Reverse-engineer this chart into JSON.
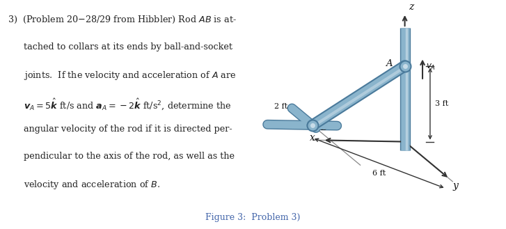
{
  "fig_width": 7.27,
  "fig_height": 3.29,
  "dpi": 100,
  "background_color": "#ffffff",
  "rod_color": "#8ab4cc",
  "rod_highlight": "#c8dce8",
  "rod_dark": "#4a7a9b",
  "axis_color": "#333333",
  "dim_color": "#333333",
  "floor_line_color": "#888888",
  "caption_color": "#4466aa",
  "text_color": "#222222",
  "figure_caption": "Figure 3:  Problem 3)",
  "problem_text": [
    [
      "3) ",
      "(Problem 20–28/29 from Hibbler) Rod ",
      "AB",
      " is at-"
    ],
    [
      "tached to collars at its ends by ball-and-socket"
    ],
    [
      "joints.  If the velocity and acceleration of ",
      "A",
      " are"
    ],
    [
      "{v}",
      "A",
      " = 5",
      "{k}",
      " ft/s and ",
      "{a}",
      "A",
      " = −2",
      "{k}",
      " ft/s², determine the"
    ],
    [
      "angular velocity of the rod if it is directed per-"
    ],
    [
      "pendicular to the axis of the rod, as well as the"
    ],
    [
      "velocity and acceleration of ",
      "B",
      "."
    ]
  ]
}
